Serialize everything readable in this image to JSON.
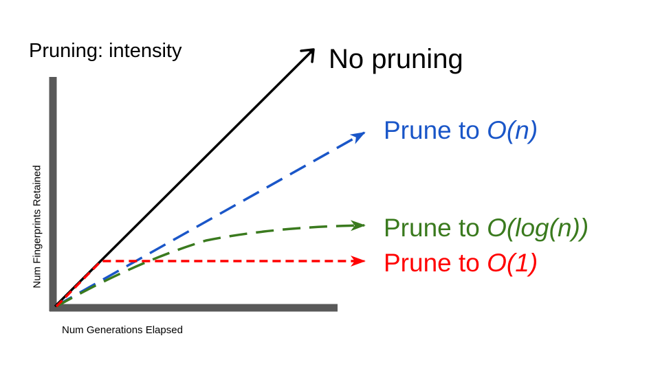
{
  "slide": {
    "title": "Pruning: intensity",
    "x_axis_label": "Num Generations Elapsed",
    "y_axis_label": "Num Fingerprints Retained"
  },
  "curves": [
    {
      "id": "none",
      "label_prefix": "No pruning",
      "label_math": "",
      "color": "#000000",
      "style": "solid"
    },
    {
      "id": "n",
      "label_prefix": "Prune to ",
      "label_math": "O(n)",
      "color": "#1a56c8",
      "style": "long-dash"
    },
    {
      "id": "log",
      "label_prefix": "Prune to ",
      "label_math": "O(log(n))",
      "color": "#3a7a1e",
      "style": "long-dash"
    },
    {
      "id": "const",
      "label_prefix": "Prune to ",
      "label_math": "O(1)",
      "color": "#ff0000",
      "style": "short-dash"
    }
  ],
  "axis_color": "#595959"
}
